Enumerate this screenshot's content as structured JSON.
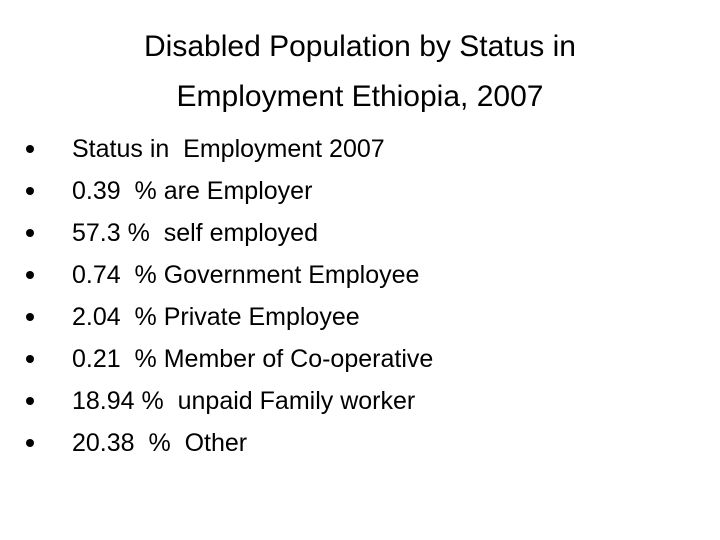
{
  "slide": {
    "title_lines": [
      "Disabled Population by Status in",
      "Employment Ethiopia, 2007"
    ],
    "bullets": [
      "Status in  Employment 2007",
      "0.39  % are Employer",
      "57.3 %  self employed",
      "0.74  % Government Employee",
      "2.04  % Private Employee",
      "0.21  % Member of Co-operative",
      "18.94 %  unpaid Family worker",
      "20.38  %  Other"
    ]
  }
}
